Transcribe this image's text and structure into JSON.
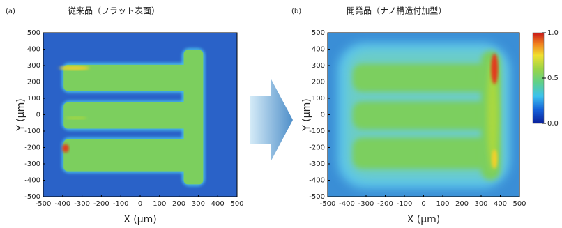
{
  "chart_data": [
    {
      "type": "heatmap",
      "label": "(a)",
      "title": "従来品（フラット表面）",
      "x_label": "X (μm)",
      "y_label": "Y (μm)",
      "xlim": [
        -500,
        500
      ],
      "ylim": [
        -500,
        500
      ],
      "xticks": [
        -500,
        -400,
        -300,
        -200,
        -100,
        0,
        100,
        200,
        300,
        400,
        500
      ],
      "yticks": [
        -500,
        -400,
        -300,
        -200,
        -100,
        0,
        100,
        200,
        300,
        400,
        500
      ],
      "colormap": "jet"
    },
    {
      "type": "heatmap",
      "label": "(b)",
      "title": "開発品（ナノ構造付加型）",
      "x_label": "X (μm)",
      "y_label": "Y (μm)",
      "xlim": [
        -500,
        500
      ],
      "ylim": [
        -500,
        500
      ],
      "xticks": [
        -500,
        -400,
        -300,
        -200,
        -100,
        0,
        100,
        200,
        300,
        400,
        500
      ],
      "yticks": [
        -500,
        -400,
        -300,
        -200,
        -100,
        0,
        100,
        200,
        300,
        400,
        500
      ],
      "colormap": "jet",
      "colorbar": {
        "lim": [
          0,
          1
        ],
        "ticks": [
          {
            "value": 0,
            "label": "0.0"
          },
          {
            "value": 0.5,
            "label": "0.5"
          },
          {
            "value": 1,
            "label": "1.0"
          }
        ]
      }
    }
  ]
}
